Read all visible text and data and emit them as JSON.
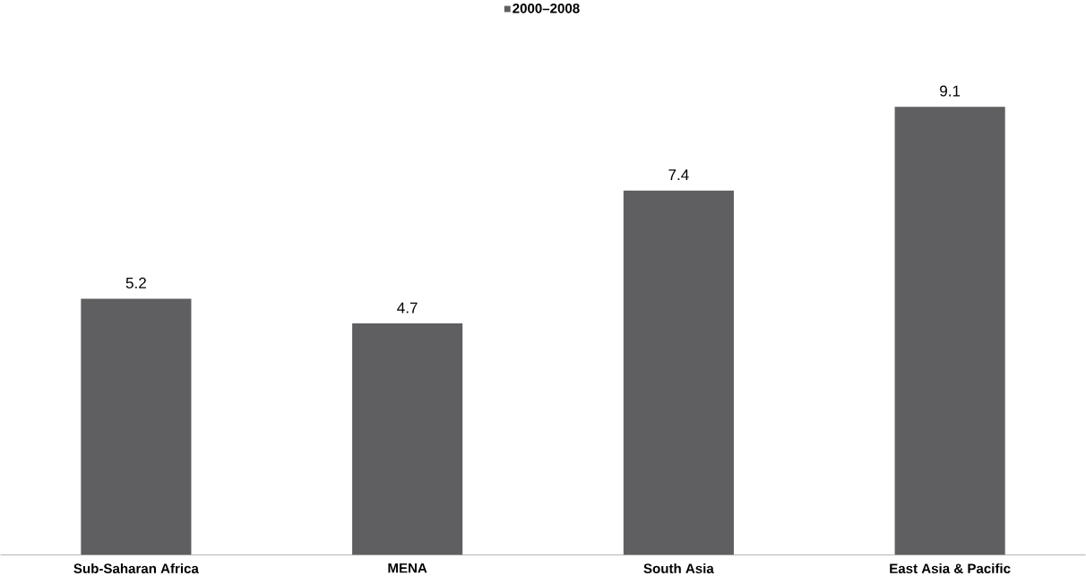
{
  "chart_data": {
    "type": "bar",
    "categories": [
      "Sub-Saharan Africa",
      "MENA",
      "South Asia",
      "East Asia & Pacific"
    ],
    "series": [
      {
        "name": "2000–2008",
        "color": "#5f5f62",
        "values": [
          5.2,
          4.7,
          7.4,
          9.1
        ]
      }
    ],
    "data_labels": true,
    "legend": "top"
  }
}
